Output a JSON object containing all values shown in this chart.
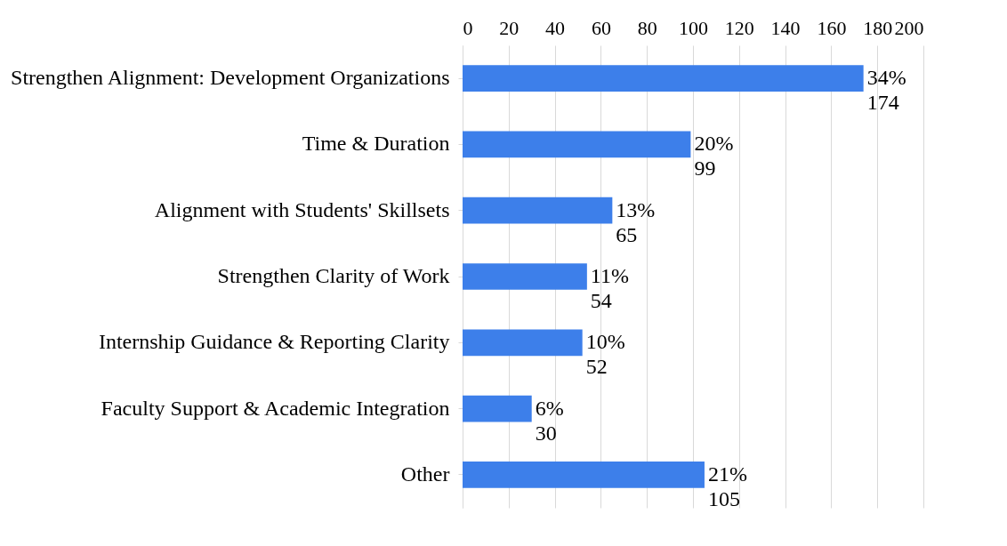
{
  "chart_data": {
    "type": "bar",
    "orientation": "horizontal",
    "categories": [
      "Strengthen Alignment: Development Organizations",
      "Time & Duration",
      "Alignment with Students' Skillsets",
      "Strengthen Clarity of Work",
      "Internship Guidance & Reporting Clarity",
      "Faculty Support & Academic Integration",
      "Other"
    ],
    "values": [
      174,
      99,
      65,
      54,
      52,
      30,
      105
    ],
    "value_labels": [
      "34%\n174",
      "20%\n99",
      "13%\n65",
      "11%\n54",
      "10%\n52",
      "6%\n30",
      "21%\n105"
    ],
    "color": "#3d7fea",
    "xlim": [
      0,
      200
    ],
    "xticks": [
      0,
      20,
      40,
      60,
      80,
      100,
      120,
      140,
      160,
      180,
      200
    ],
    "grid": "x"
  }
}
